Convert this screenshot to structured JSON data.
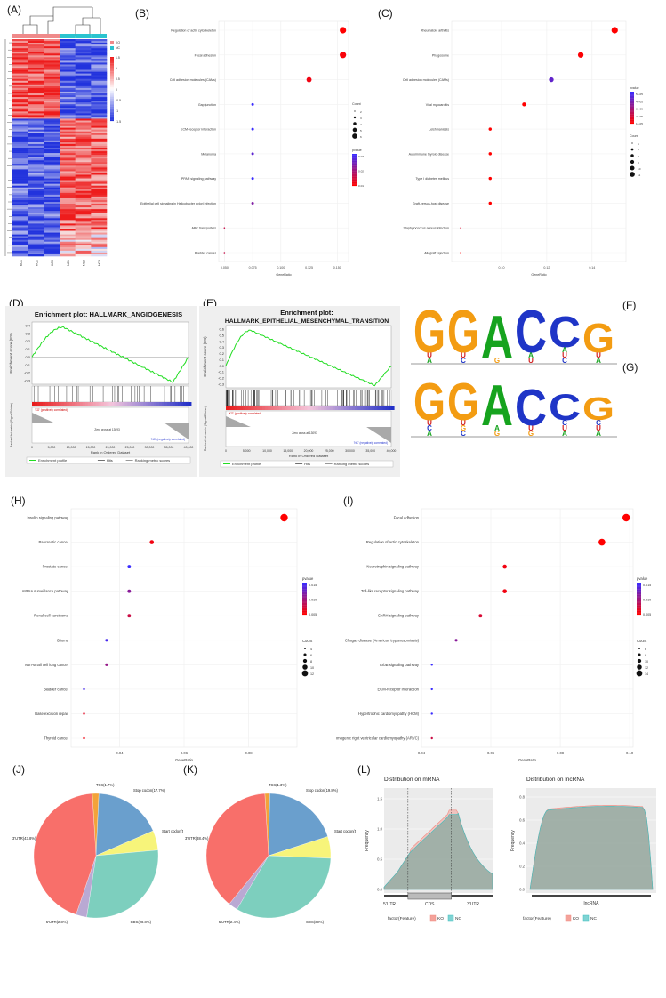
{
  "labels": [
    "(A)",
    "(B)",
    "(C)",
    "(D)",
    "(E)",
    "(F)",
    "(G)",
    "(H)",
    "(I)",
    "(J)",
    "(K)",
    "(L)"
  ],
  "heatmap": {
    "legend_ticks": [
      "1.5",
      "1",
      "0.5",
      "0",
      "-0.5",
      "-1",
      "-1.5"
    ],
    "group_key": [
      "KO",
      "NC"
    ],
    "group_colors": {
      "KO": "#ef8a8a",
      "NC": "#2bc4cf"
    },
    "samples": [
      "KO1",
      "KO2",
      "KO3",
      "NC1",
      "NC2",
      "NC3"
    ],
    "colors": {
      "high": "#ee1c1c",
      "mid": "#ffffff",
      "low": "#2233dd"
    }
  },
  "panel_B": {
    "chart_data": {
      "type": "scatter",
      "xlabel": "GeneRatio",
      "categories": [
        "Regulation of actin cytoskeleton",
        "Focal adhesion",
        "Cell adhesion molecules (CAMs)",
        "Gap junction",
        "ECM-receptor interaction",
        "Melanoma",
        "PPAR signaling pathway",
        "Epithelial cell signaling in Helicobacter pylori infection",
        "ABC transporters",
        "Bladder cancer"
      ],
      "x": [
        0.155,
        0.155,
        0.125,
        0.075,
        0.075,
        0.075,
        0.075,
        0.075,
        0.05,
        0.05
      ],
      "count": [
        6,
        6,
        5,
        3,
        3,
        3,
        3,
        3,
        2,
        2
      ],
      "pvalue": [
        0.002,
        0.003,
        0.004,
        0.03,
        0.03,
        0.025,
        0.03,
        0.02,
        0.01,
        0.01
      ],
      "xticks": [
        "0.050",
        "0.075",
        "0.100",
        "0.125",
        "0.150"
      ],
      "xlim": [
        0.045,
        0.16
      ],
      "size_legend_title": "Count",
      "size_legend": [
        "2",
        "3",
        "4",
        "5",
        "6"
      ],
      "color_legend_title": "pvalue",
      "color_legend": [
        "0.03",
        "0.02",
        "0.01"
      ]
    }
  },
  "panel_C": {
    "chart_data": {
      "type": "scatter",
      "xlabel": "GeneRatio",
      "categories": [
        "Rheumatoid arthritis",
        "Phagosome",
        "Cell adhesion molecules (CAMs)",
        "Viral myocarditis",
        "Leishmaniasis",
        "Autoimmune thyroid disease",
        "Type I diabetes mellitus",
        "Graft-versus-host disease",
        "Staphylococcus aureus infection",
        "Allograft rejection"
      ],
      "x": [
        0.15,
        0.135,
        0.122,
        0.11,
        0.095,
        0.095,
        0.095,
        0.095,
        0.082,
        0.082
      ],
      "count": [
        11,
        10,
        9,
        8,
        7,
        7,
        7,
        7,
        5,
        5
      ],
      "pvalue": [
        1e-06,
        2e-06,
        4e-05,
        1e-06,
        1e-06,
        1e-06,
        1e-06,
        1e-06,
        1e-05,
        1e-06
      ],
      "xticks": [
        "0.10",
        "0.12",
        "0.14"
      ],
      "xlim": [
        0.078,
        0.155
      ],
      "size_legend_title": "Count",
      "size_legend": [
        "5",
        "7",
        "8",
        "9",
        "10",
        "11"
      ],
      "color_legend_title": "pvalue",
      "color_legend": [
        "5e-05",
        "4e-05",
        "3e-05",
        "2e-05",
        "1e-05"
      ]
    }
  },
  "panel_D": {
    "title": "Enrichment plot: HALLMARK_ANGIOGENESIS",
    "ylabel": "Enrichment score (ES)",
    "ylabel2": "Ranked list metric (Signal2Noise)",
    "xlabel": "Rank in Ordered Dataset",
    "pos_label": "'KO' (positively correlated)",
    "neg_label": "'NC' (negatively correlated)",
    "zero_label": "Zero cross at 13093",
    "yticks": [
      "0.4",
      "0.3",
      "0.2",
      "0.1",
      "0.0",
      "-0.1",
      "-0.2",
      "-0.3"
    ],
    "xticks": [
      "0",
      "5,000",
      "10,000",
      "15,000",
      "20,000",
      "25,000",
      "30,000",
      "35,000",
      "40,000"
    ],
    "legend": [
      "Enrichment profile",
      "Hits",
      "Ranking metric scores"
    ]
  },
  "panel_E": {
    "title_line1": "Enrichment plot:",
    "title_line2": "HALLMARK_EPITHELIAL_MESENCHYMAL_TRANSITION",
    "ylabel": "Enrichment score (ES)",
    "ylabel2": "Ranked list metric (Signal2Noise)",
    "xlabel": "Rank in Ordered Dataset",
    "pos_label": "'KO' (positively correlated)",
    "neg_label": "'NC' (negatively correlated)",
    "zero_label": "Zero cross at 13093",
    "yticks": [
      "0.6",
      "0.5",
      "0.4",
      "0.3",
      "0.2",
      "0.1",
      "0.0",
      "-0.1",
      "-0.2",
      "-0.3"
    ],
    "xticks": [
      "0",
      "5,000",
      "10,000",
      "15,000",
      "20,000",
      "25,000",
      "30,000",
      "35,000",
      "40,000"
    ],
    "legend": [
      "Enrichment profile",
      "Hits",
      "Ranking metric scores"
    ]
  },
  "motif_F": {
    "letters": [
      "G",
      "G",
      "A",
      "C",
      "C",
      "G"
    ]
  },
  "motif_G": {
    "letters": [
      "G",
      "G",
      "A",
      "C",
      "C",
      "G"
    ]
  },
  "panel_H": {
    "chart_data": {
      "type": "scatter",
      "xlabel": "GeneRatio",
      "categories": [
        "Insulin signaling pathway",
        "Pancreatic cancer",
        "Prostate cancer",
        "mRNA surveillance pathway",
        "Renal cell carcinoma",
        "Glioma",
        "Non-small cell lung cancer",
        "Bladder cancer",
        "Base excision repair",
        "Thyroid cancer"
      ],
      "x": [
        0.091,
        0.05,
        0.043,
        0.043,
        0.043,
        0.036,
        0.036,
        0.029,
        0.029,
        0.029
      ],
      "count": [
        12,
        7,
        6,
        6,
        6,
        5,
        5,
        4,
        4,
        4
      ],
      "pvalue": [
        0.001,
        0.002,
        0.016,
        0.01,
        0.005,
        0.015,
        0.009,
        0.015,
        0.003,
        0.002
      ],
      "xticks": [
        "0.04",
        "0.06",
        "0.08"
      ],
      "xlim": [
        0.025,
        0.095
      ],
      "size_legend_title": "Count",
      "size_legend": [
        "4",
        "6",
        "8",
        "10",
        "12"
      ],
      "color_legend_title": "pvalue",
      "color_legend": [
        "0.015",
        "0.010",
        "0.005"
      ]
    }
  },
  "panel_I": {
    "chart_data": {
      "type": "scatter",
      "xlabel": "GeneRatio",
      "categories": [
        "Focal adhesion",
        "Regulation of actin cytoskeleton",
        "Neurotrophin signaling pathway",
        "Toll-like receptor signaling pathway",
        "GnRH signaling pathway",
        "Chagas disease (American trypanosomiasis)",
        "ErbB signaling pathway",
        "ECM-receptor interaction",
        "Hypertrophic cardiomyopathy (HCM)",
        "Arrhythmogenic right ventricular cardiomyopathy (ARVC)"
      ],
      "x": [
        0.099,
        0.092,
        0.064,
        0.064,
        0.057,
        0.05,
        0.043,
        0.043,
        0.043,
        0.043
      ],
      "count": [
        14,
        13,
        9,
        9,
        8,
        7,
        6,
        6,
        6,
        6
      ],
      "pvalue": [
        0.001,
        0.001,
        0.002,
        0.002,
        0.004,
        0.01,
        0.016,
        0.016,
        0.016,
        0.005
      ],
      "xticks": [
        "0.04",
        "0.06",
        "0.08",
        "0.10"
      ],
      "xlim": [
        0.04,
        0.101
      ],
      "size_legend_title": "Count",
      "size_legend": [
        "6",
        "8",
        "10",
        "12",
        "14"
      ],
      "color_legend_title": "pvalue",
      "color_legend": [
        "0.015",
        "0.010",
        "0.005"
      ]
    }
  },
  "pie_J": {
    "chart_data": {
      "type": "pie",
      "labels": [
        "TSS(1.7%)",
        "Stop codon(17.7%)",
        "Start codon(5.1%)",
        "CDS(28.8%)",
        "5'UTR(2.8%)",
        "3'UTR(43.8%)"
      ],
      "values": [
        1.7,
        17.7,
        5.1,
        28.8,
        2.8,
        43.8
      ],
      "colors": [
        "#f2a33a",
        "#6a9fcd",
        "#f7f47a",
        "#7dcfbe",
        "#b9a9d3",
        "#f86f6a"
      ]
    }
  },
  "pie_K": {
    "chart_data": {
      "type": "pie",
      "labels": [
        "TSS(1.3%)",
        "Stop codon(19.8%)",
        "Start codon(5.7%)",
        "CDS(33%)",
        "5'UTR(2.4%)",
        "3'UTR(38.4%)"
      ],
      "values": [
        1.3,
        19.8,
        5.7,
        33,
        2.4,
        38.4
      ],
      "colors": [
        "#f2a33a",
        "#6a9fcd",
        "#f7f47a",
        "#7dcfbe",
        "#b9a9d3",
        "#f86f6a"
      ]
    }
  },
  "panel_L": {
    "mrna_title": "Distribution on mRNA",
    "lnc_title": "Distribution on lncRNA",
    "ylabel": "Frequency",
    "mrna_yticks": [
      "1.5",
      "1.0",
      "0.5",
      "0.0"
    ],
    "lnc_yticks": [
      "0.8",
      "0.6",
      "0.4",
      "0.2",
      "0.0"
    ],
    "segments": [
      "5'UTR",
      "CDS",
      "3'UTR"
    ],
    "lnc_segment": "lncRNA",
    "legend_title": "factor(Feature)",
    "legend": [
      "KO",
      "NC"
    ],
    "colors": {
      "KO": "#f4a29a",
      "NC": "#7fd3d3"
    }
  }
}
